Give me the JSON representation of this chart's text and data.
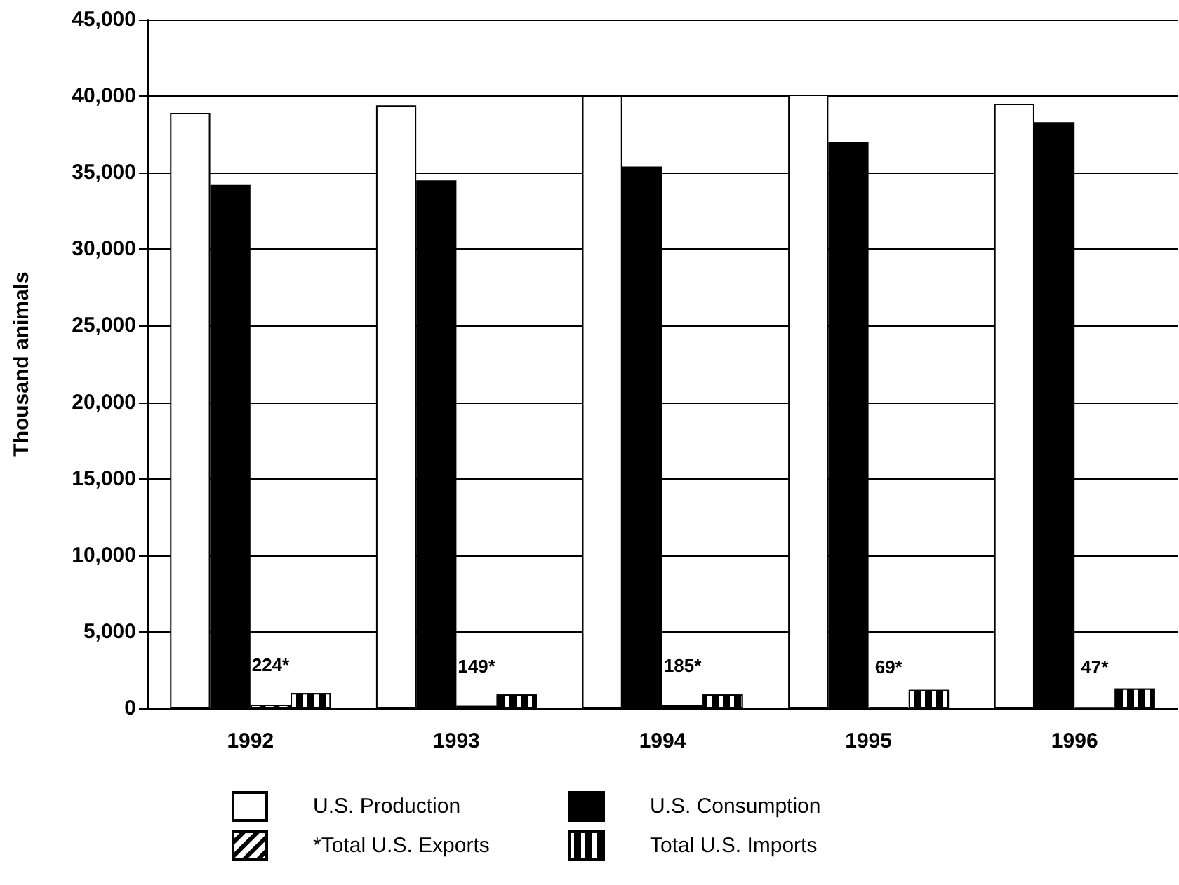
{
  "chart_data": {
    "type": "bar",
    "ylabel": "Thousand animals",
    "categories": [
      "1992",
      "1993",
      "1994",
      "1995",
      "1996"
    ],
    "series": [
      {
        "name": "U.S. Production",
        "color": "#ffffff",
        "values": [
          38900,
          39400,
          40000,
          40100,
          39500
        ]
      },
      {
        "name": "U.S. Consumption",
        "color": "#000000",
        "values": [
          34200,
          34500,
          35400,
          37000,
          38300
        ]
      },
      {
        "name": "*Total U.S. Exports",
        "color": "#000000",
        "values": [
          224,
          149,
          185,
          69,
          47
        ],
        "value_labels": [
          "224*",
          "149*",
          "185*",
          "69*",
          "47*"
        ]
      },
      {
        "name": "Total U.S. Imports",
        "color": "#000000",
        "values": [
          1000,
          900,
          900,
          1200,
          1300
        ]
      }
    ],
    "ylim": [
      0,
      45000
    ],
    "yticks": [
      0,
      {
        "value": 5000,
        "label": "5,000"
      },
      {
        "value": 10000,
        "label": "10,000"
      },
      {
        "value": 15000,
        "label": "15,000"
      },
      {
        "value": 20000,
        "label": "20,000"
      },
      {
        "value": 25000,
        "label": "25,000"
      },
      {
        "value": 30000,
        "label": "30,000"
      },
      {
        "value": 35000,
        "label": "35,000"
      },
      {
        "value": 40000,
        "label": "40,000"
      },
      {
        "value": 45000,
        "label": "45,000"
      }
    ],
    "grid": "y",
    "legend": "bottom"
  }
}
